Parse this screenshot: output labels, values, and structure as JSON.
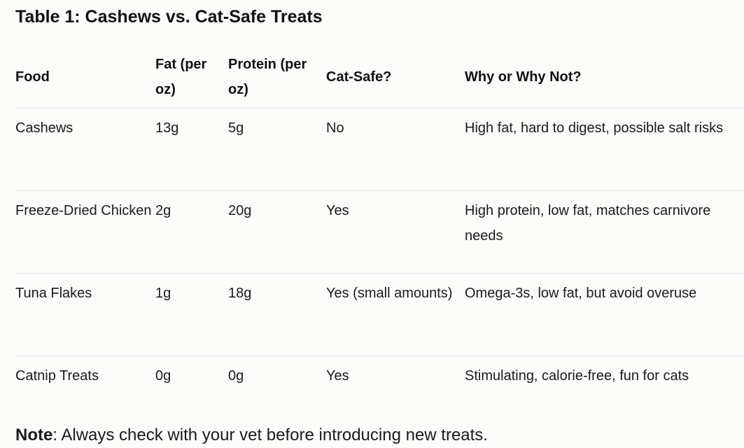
{
  "title": "Table 1: Cashews vs. Cat-Safe Treats",
  "table": {
    "headers": [
      "Food",
      "Fat (per oz)",
      "Protein (per oz)",
      "Cat-Safe?",
      "Why or Why Not?"
    ],
    "rows": [
      [
        "Cashews",
        "13g",
        "5g",
        "No",
        "High fat, hard to digest, possible salt risks"
      ],
      [
        "Freeze-Dried Chicken",
        "2g",
        "20g",
        "Yes",
        "High protein, low fat, matches carnivore needs"
      ],
      [
        "Tuna Flakes",
        "1g",
        "18g",
        "Yes (small amounts)",
        "Omega-3s, low fat, but avoid overuse"
      ],
      [
        "Catnip Treats",
        "0g",
        "0g",
        "Yes",
        "Stimulating, calorie-free, fun for cats"
      ]
    ]
  },
  "note": {
    "label": "Note",
    "text": ": Always check with your vet before introducing new treats."
  }
}
